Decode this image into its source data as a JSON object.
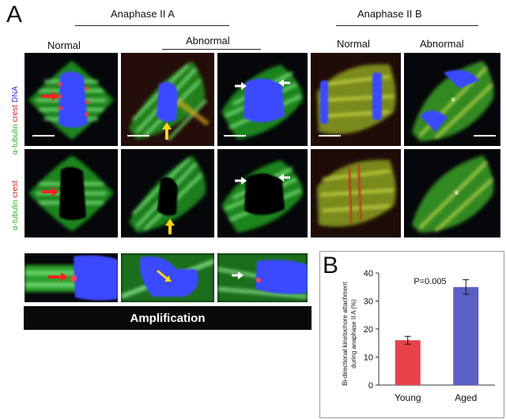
{
  "panel_a": {
    "letter": "A",
    "group_left": "Anaphase II A",
    "group_right": "Anaphase II B",
    "col_normal_a": "Normal",
    "col_abnormal_a": "Abnormal",
    "col_normal_b": "Normal",
    "col_abnormal_b": "Abnormal",
    "row1_label": {
      "part1": "α-tubulin",
      "part2": "crest",
      "part3": "DNA"
    },
    "row2_label": {
      "part1": "α-tubulin",
      "part2": "crest"
    },
    "amplification": "Amplification"
  },
  "panel_b": {
    "letter": "B"
  },
  "colors": {
    "tubulin": "#2ecc2e",
    "crest": "#e8433a",
    "dna": "#2a3cf0",
    "young_bar": "#e8434a",
    "aged_bar": "#5b5fc4"
  },
  "chart_data": {
    "type": "bar",
    "categories": [
      "Young",
      "Aged"
    ],
    "values": [
      16,
      35
    ],
    "errors": [
      1.4,
      2.6
    ],
    "ylabel": "Bi-directional kinetochore attachment during anaphase II A (%)",
    "ylim": [
      0,
      40
    ],
    "yticks": [
      0,
      10,
      20,
      30,
      40
    ],
    "annotation": "P=0.005",
    "grid": false
  }
}
